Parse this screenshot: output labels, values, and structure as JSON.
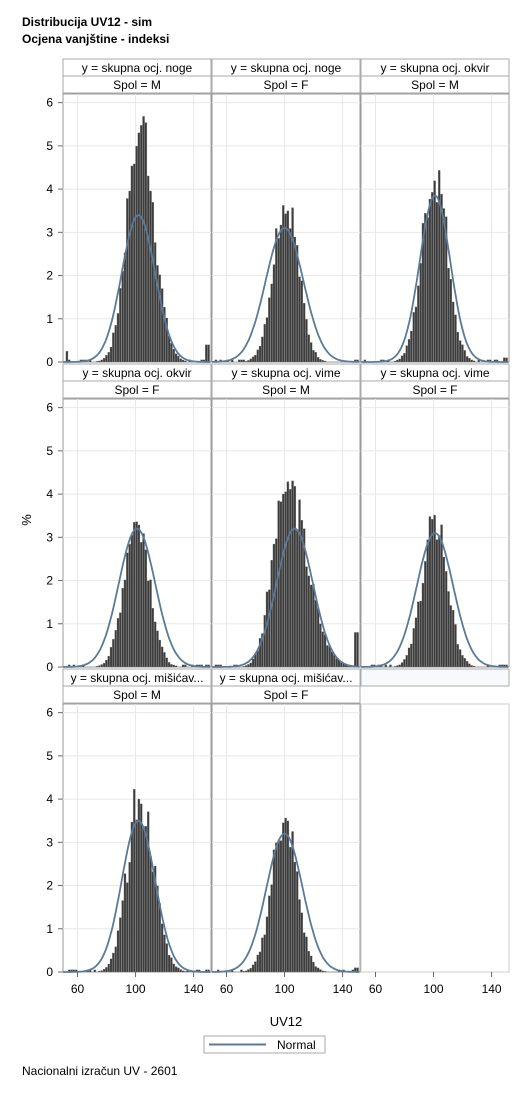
{
  "titles": [
    "Distribucija UV12 - sim",
    "Ocjena vanjštine - indeksi"
  ],
  "footnote": "Nacionalni izračun UV - 2601",
  "chart_data": {
    "type": "histogram-panel",
    "xlabel": "UV12",
    "ylabel": "%",
    "xlim": [
      50,
      152
    ],
    "ylim": [
      0,
      6.2
    ],
    "xticks": [
      60,
      100,
      140
    ],
    "yticks": [
      0,
      1,
      2,
      3,
      4,
      5,
      6
    ],
    "legend": {
      "label": "Normal",
      "position": "bottom-center"
    },
    "bar_color": "#3c3c3c",
    "curve_color": "#5b7a99",
    "panels": [
      {
        "row_header": "y = skupna ocj. noge",
        "col_header": "Spol = M",
        "center": 103,
        "peak": 6.0,
        "normal_mean": 102,
        "normal_sd": 11.5,
        "normal_peak": 3.4,
        "skew": 0.1,
        "edge_left": 0.25,
        "edge_right": 0.4
      },
      {
        "row_header": "y = skupna ocj. noge",
        "col_header": "Spol = F",
        "center": 101,
        "peak": 3.95,
        "normal_mean": 100,
        "normal_sd": 13,
        "normal_peak": 3.1,
        "skew": 0.0,
        "edge_left": 0.05,
        "edge_right": 0.05
      },
      {
        "row_header": "y = skupna ocj. okvir",
        "col_header": "Spol = M",
        "center": 101,
        "peak": 4.7,
        "normal_mean": 101,
        "normal_sd": 10.5,
        "normal_peak": 3.85,
        "skew": 0.0,
        "edge_left": 0.05,
        "edge_right": 0.1
      },
      {
        "row_header": "y = skupna ocj. okvir",
        "col_header": "Spol = F",
        "center": 101,
        "peak": 3.7,
        "normal_mean": 101,
        "normal_sd": 12.5,
        "normal_peak": 3.2,
        "skew": 0.0,
        "edge_left": 0.0,
        "edge_right": 0.05
      },
      {
        "row_header": "y = skupna ocj. vime",
        "col_header": "Spol = M",
        "center": 100,
        "peak": 4.5,
        "normal_mean": 107,
        "normal_sd": 12.5,
        "normal_peak": 3.2,
        "skew": 0.55,
        "edge_left": 0.05,
        "edge_right": 0.8
      },
      {
        "row_header": "y = skupna ocj. vime",
        "col_header": "Spol = F",
        "center": 101,
        "peak": 3.6,
        "normal_mean": 101,
        "normal_sd": 12.5,
        "normal_peak": 3.1,
        "skew": 0.0,
        "edge_left": 0.0,
        "edge_right": 0.05
      },
      {
        "row_header": "y = skupna ocj. mišićav...",
        "col_header": "Spol = M",
        "center": 103,
        "peak": 4.2,
        "normal_mean": 102,
        "normal_sd": 11.5,
        "normal_peak": 3.5,
        "skew": 0.1,
        "edge_left": 0.0,
        "edge_right": 0.05
      },
      {
        "row_header": "y = skupna ocj. mišićav...",
        "col_header": "Spol = F",
        "center": 100,
        "peak": 3.75,
        "normal_mean": 100,
        "normal_sd": 12.5,
        "normal_peak": 3.2,
        "skew": 0.0,
        "edge_left": 0.0,
        "edge_right": 0.1
      }
    ]
  }
}
